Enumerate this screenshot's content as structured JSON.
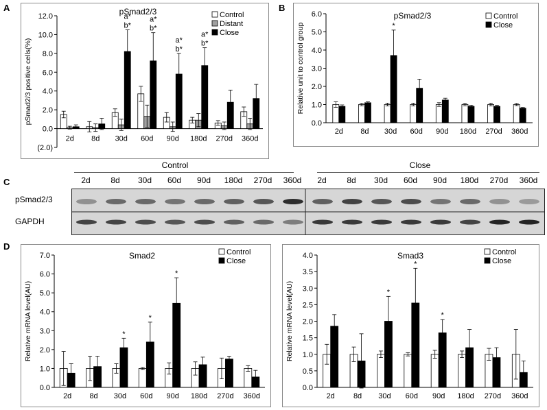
{
  "panels": {
    "A": "A",
    "B": "B",
    "C": "C",
    "D": "D"
  },
  "blot": {
    "group_control": "Control",
    "group_close": "Close",
    "lanes_control": [
      "2d",
      "8d",
      "30d",
      "60d",
      "90d",
      "180d",
      "270d",
      "360d"
    ],
    "lanes_close": [
      "2d",
      "8d",
      "30d",
      "60d",
      "90d",
      "180d",
      "270d",
      "360d"
    ],
    "row1": "pSmad2/3",
    "row2": "GAPDH",
    "band_intensity_row1": [
      0.35,
      0.55,
      0.55,
      0.5,
      0.55,
      0.6,
      0.65,
      0.85,
      0.6,
      0.75,
      0.65,
      0.7,
      0.5,
      0.55,
      0.35,
      0.3
    ],
    "band_intensity_row2": [
      0.75,
      0.75,
      0.7,
      0.65,
      0.7,
      0.6,
      0.55,
      0.45,
      0.8,
      0.8,
      0.8,
      0.8,
      0.8,
      0.75,
      0.9,
      0.9
    ]
  },
  "chart_data": [
    {
      "id": "A",
      "type": "bar",
      "title": "pSmad2/3",
      "ylabel": "pSmad2/3 positive cells(%)",
      "ylim": [
        -2,
        12
      ],
      "yticks": [
        "(2.0)",
        "0.0",
        "2.0",
        "4.0",
        "6.0",
        "8.0",
        "10.0",
        "12.0"
      ],
      "categories": [
        "2d",
        "8d",
        "30d",
        "60d",
        "90d",
        "180d",
        "270d",
        "360d"
      ],
      "series": [
        {
          "name": "Control",
          "color": "#ffffff",
          "values": [
            1.5,
            0.2,
            1.7,
            3.7,
            1.2,
            0.9,
            0.6,
            1.8
          ],
          "errors": [
            0.35,
            0.55,
            0.4,
            0.8,
            0.5,
            0.3,
            0.25,
            0.5
          ]
        },
        {
          "name": "Distant",
          "color": "#a0a0a0",
          "values": [
            0.1,
            0.1,
            0.4,
            1.3,
            0.2,
            0.9,
            0.3,
            0.5
          ],
          "errors": [
            0.15,
            0.4,
            0.6,
            1.2,
            0.5,
            0.7,
            0.4,
            0.6
          ]
        },
        {
          "name": "Close",
          "color": "#000000",
          "values": [
            0.2,
            0.5,
            8.2,
            7.2,
            5.8,
            6.7,
            2.8,
            3.2
          ],
          "errors": [
            0.2,
            0.6,
            2.3,
            3.0,
            2.2,
            1.9,
            1.3,
            1.5
          ]
        }
      ],
      "annotations": [
        {
          "category": "30d",
          "lines": [
            "a*",
            "b*"
          ]
        },
        {
          "category": "60d",
          "lines": [
            "a*",
            "b*"
          ]
        },
        {
          "category": "90d",
          "lines": [
            "a*",
            "b*"
          ]
        },
        {
          "category": "180d",
          "lines": [
            "a*",
            "b*"
          ]
        }
      ],
      "legend": "top-right"
    },
    {
      "id": "B",
      "type": "bar",
      "title": "pSmad2/3",
      "ylabel": "Relative unit to control group",
      "ylim": [
        0,
        6
      ],
      "yticks": [
        "0.0",
        "1.0",
        "2.0",
        "3.0",
        "4.0",
        "5.0",
        "6.0"
      ],
      "categories": [
        "2d",
        "8d",
        "30d",
        "60d",
        "90d",
        "180d",
        "270d",
        "360d"
      ],
      "series": [
        {
          "name": "Control",
          "color": "#ffffff",
          "values": [
            1.0,
            1.0,
            1.0,
            1.0,
            1.0,
            1.0,
            1.0,
            1.0
          ],
          "errors": [
            0.15,
            0.07,
            0.08,
            0.08,
            0.1,
            0.07,
            0.08,
            0.06
          ]
        },
        {
          "name": "Close",
          "color": "#000000",
          "values": [
            0.9,
            1.1,
            3.7,
            1.9,
            1.25,
            0.9,
            0.9,
            0.8
          ],
          "errors": [
            0.08,
            0.05,
            1.4,
            0.5,
            0.1,
            0.06,
            0.06,
            0.04
          ]
        }
      ],
      "annotations": [
        {
          "category": "30d",
          "lines": [
            "*"
          ]
        }
      ],
      "legend": "top-right"
    },
    {
      "id": "D1",
      "type": "bar",
      "title": "Smad2",
      "ylabel": "Relative mRNA level(AU)",
      "ylim": [
        0,
        7
      ],
      "yticks": [
        "0.0",
        "1.0",
        "2.0",
        "3.0",
        "4.0",
        "5.0",
        "6.0",
        "7.0"
      ],
      "categories": [
        "2d",
        "8d",
        "30d",
        "60d",
        "90d",
        "180d",
        "270d",
        "360d"
      ],
      "series": [
        {
          "name": "Control",
          "color": "#ffffff",
          "values": [
            1.0,
            1.0,
            1.0,
            1.0,
            1.0,
            1.0,
            1.0,
            1.0
          ],
          "errors": [
            0.9,
            0.65,
            0.25,
            0.05,
            0.3,
            0.35,
            0.55,
            0.15
          ]
        },
        {
          "name": "Close",
          "color": "#000000",
          "values": [
            0.75,
            1.1,
            2.1,
            2.4,
            4.45,
            1.2,
            1.5,
            0.55
          ],
          "errors": [
            0.5,
            0.55,
            0.5,
            1.05,
            1.35,
            0.4,
            0.15,
            0.35
          ]
        }
      ],
      "annotations": [
        {
          "category": "30d",
          "lines": [
            "*"
          ]
        },
        {
          "category": "60d",
          "lines": [
            "*"
          ]
        },
        {
          "category": "90d",
          "lines": [
            "*"
          ]
        }
      ],
      "legend": "top-right"
    },
    {
      "id": "D2",
      "type": "bar",
      "title": "Smad3",
      "ylabel": "Relative mRNA level(AU)",
      "ylim": [
        0,
        4
      ],
      "yticks": [
        "0.0",
        "0.5",
        "1.0",
        "1.5",
        "2.0",
        "2.5",
        "3.0",
        "3.5",
        "4.0"
      ],
      "categories": [
        "2d",
        "8d",
        "30d",
        "60d",
        "90d",
        "180d",
        "270d",
        "360d"
      ],
      "series": [
        {
          "name": "Control",
          "color": "#ffffff",
          "values": [
            1.0,
            1.0,
            1.0,
            1.0,
            1.0,
            1.0,
            1.0,
            1.0
          ],
          "errors": [
            0.3,
            0.22,
            0.1,
            0.05,
            0.12,
            0.1,
            0.18,
            0.75
          ]
        },
        {
          "name": "Close",
          "color": "#000000",
          "values": [
            1.85,
            0.8,
            2.0,
            2.55,
            1.65,
            1.2,
            0.9,
            0.45
          ],
          "errors": [
            0.35,
            0.82,
            0.75,
            1.05,
            0.4,
            0.55,
            0.3,
            0.35
          ]
        }
      ],
      "annotations": [
        {
          "category": "30d",
          "lines": [
            "*"
          ]
        },
        {
          "category": "60d",
          "lines": [
            "*"
          ]
        },
        {
          "category": "90d",
          "lines": [
            "*"
          ]
        }
      ],
      "legend": "top-right"
    }
  ]
}
